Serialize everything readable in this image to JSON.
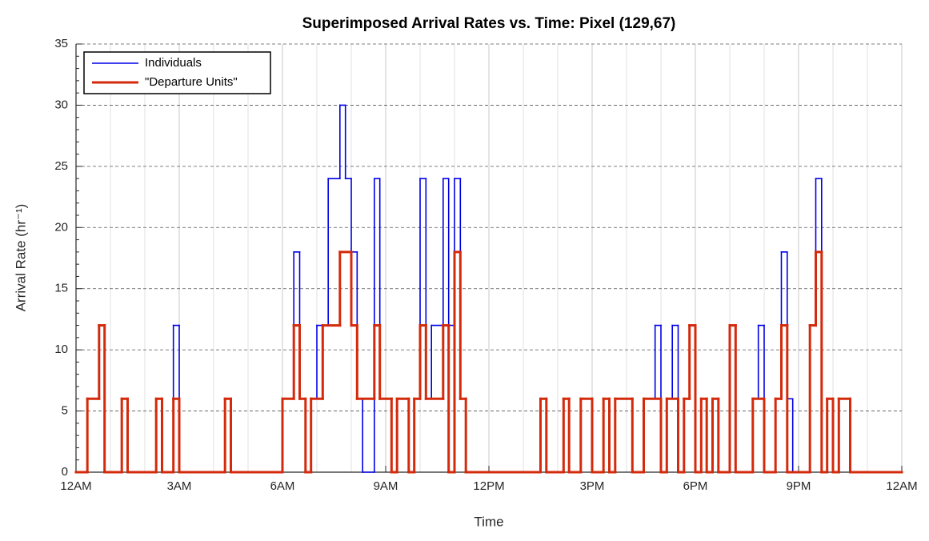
{
  "chart_data": {
    "type": "step",
    "title": "Superimposed Arrival Rates vs. Time: Pixel (129,67)",
    "x_label": "Time",
    "y_label": "Arrival Rate (hr⁻¹)",
    "xlim": [
      0,
      24
    ],
    "xticks": [
      {
        "value": 0,
        "label": "12AM"
      },
      {
        "value": 3,
        "label": "3AM"
      },
      {
        "value": 6,
        "label": "6AM"
      },
      {
        "value": 9,
        "label": "9AM"
      },
      {
        "value": 12,
        "label": "12PM"
      },
      {
        "value": 15,
        "label": "3PM"
      },
      {
        "value": 18,
        "label": "6PM"
      },
      {
        "value": 21,
        "label": "9PM"
      },
      {
        "value": 24,
        "label": "12AM"
      }
    ],
    "ylim": [
      0,
      35
    ],
    "yticks": [
      0,
      5,
      10,
      15,
      20,
      25,
      30,
      35
    ],
    "grid": true,
    "legend": "upper left",
    "series": [
      {
        "name": "Individuals",
        "color": "#0000e6",
        "x": [
          0,
          0.33,
          0.67,
          0.83,
          1.33,
          1.5,
          2.33,
          2.5,
          2.83,
          3.0,
          4.33,
          4.5,
          6.0,
          6.33,
          6.5,
          6.67,
          6.83,
          7.0,
          7.33,
          7.67,
          7.83,
          8.0,
          8.17,
          8.33,
          8.67,
          8.83,
          9.17,
          9.33,
          9.67,
          9.83,
          10.0,
          10.17,
          10.33,
          10.67,
          10.83,
          11.0,
          11.17,
          11.33,
          13.5,
          13.67,
          14.17,
          14.33,
          14.67,
          15.0,
          15.33,
          15.5,
          15.67,
          16.17,
          16.5,
          16.83,
          17.0,
          17.17,
          17.33,
          17.5,
          17.67,
          17.83,
          18.0,
          18.17,
          18.33,
          18.5,
          18.67,
          19.0,
          19.17,
          19.67,
          19.83,
          20.0,
          20.33,
          20.5,
          20.67,
          20.83,
          21.33,
          21.5,
          21.67,
          21.83,
          22.0,
          22.17,
          22.5,
          24
        ],
        "values": [
          0,
          6,
          12,
          0,
          6,
          0,
          6,
          0,
          12,
          0,
          6,
          0,
          6,
          18,
          6,
          0,
          6,
          12,
          24,
          30,
          24,
          18,
          6,
          0,
          24,
          6,
          0,
          6,
          0,
          6,
          24,
          6,
          12,
          24,
          12,
          24,
          6,
          0,
          6,
          0,
          6,
          0,
          6,
          0,
          6,
          0,
          6,
          0,
          6,
          12,
          0,
          6,
          12,
          0,
          6,
          12,
          0,
          6,
          0,
          6,
          0,
          12,
          0,
          6,
          12,
          0,
          6,
          18,
          6,
          0,
          12,
          24,
          0,
          6,
          0,
          6,
          0,
          0
        ]
      },
      {
        "name": "\"Departure Units\"",
        "color": "#d42a0c",
        "x": [
          0,
          0.33,
          0.67,
          0.83,
          1.33,
          1.5,
          2.33,
          2.5,
          2.83,
          3.0,
          4.33,
          4.5,
          6.0,
          6.33,
          6.5,
          6.67,
          6.83,
          7.17,
          7.67,
          8.0,
          8.17,
          8.67,
          8.83,
          9.17,
          9.33,
          9.67,
          9.83,
          10.0,
          10.17,
          10.67,
          10.83,
          11.0,
          11.17,
          11.33,
          13.5,
          13.67,
          14.17,
          14.33,
          14.67,
          15.0,
          15.33,
          15.5,
          15.67,
          16.17,
          16.5,
          17.0,
          17.17,
          17.5,
          17.67,
          17.83,
          18.0,
          18.17,
          18.33,
          18.5,
          18.67,
          19.0,
          19.17,
          19.67,
          20.0,
          20.33,
          20.5,
          20.67,
          21.33,
          21.5,
          21.67,
          21.83,
          22.0,
          22.17,
          22.5,
          24
        ],
        "values": [
          0,
          6,
          12,
          0,
          6,
          0,
          6,
          0,
          6,
          0,
          6,
          0,
          6,
          12,
          6,
          0,
          6,
          12,
          18,
          12,
          6,
          12,
          6,
          0,
          6,
          0,
          6,
          12,
          6,
          12,
          0,
          18,
          6,
          0,
          6,
          0,
          6,
          0,
          6,
          0,
          6,
          0,
          6,
          0,
          6,
          0,
          6,
          0,
          6,
          12,
          0,
          6,
          0,
          6,
          0,
          12,
          0,
          6,
          0,
          6,
          12,
          0,
          12,
          18,
          0,
          6,
          0,
          6,
          0,
          0
        ]
      }
    ]
  }
}
